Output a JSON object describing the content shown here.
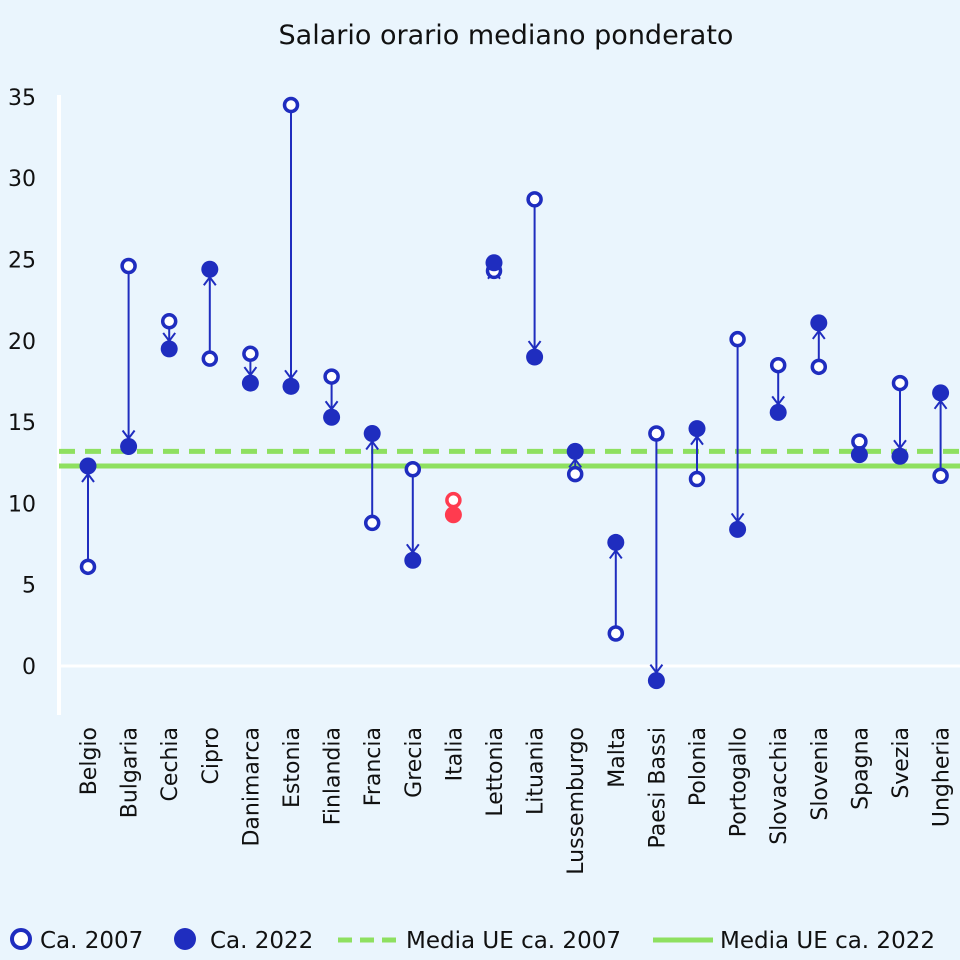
{
  "chart_data": {
    "type": "dumbbell-arrow",
    "title": "Salario orario mediano ponderato",
    "xlabel": "",
    "ylabel": "",
    "ylim": [
      -3,
      35
    ],
    "yticks": [
      0,
      5,
      10,
      15,
      20,
      25,
      30,
      35
    ],
    "grid": false,
    "legend_placement": "bottom",
    "categories": [
      "Belgio",
      "Bulgaria",
      "Cechia",
      "Cipro",
      "Danimarca",
      "Estonia",
      "Finlandia",
      "Francia",
      "Grecia",
      "Italia",
      "Lettonia",
      "Lituania",
      "Lussemburgo",
      "Malta",
      "Paesi Bassi",
      "Polonia",
      "Portogallo",
      "Slovacchia",
      "Slovenia",
      "Spagna",
      "Svezia",
      "Ungheria"
    ],
    "series": [
      {
        "name": "Ca. 2007",
        "marker": "open-circle",
        "values": [
          6.1,
          24.6,
          21.2,
          18.9,
          19.2,
          34.5,
          17.8,
          8.8,
          12.1,
          10.2,
          24.3,
          28.7,
          11.8,
          2.0,
          14.3,
          11.5,
          20.1,
          18.5,
          18.4,
          13.8,
          17.4,
          11.7
        ]
      },
      {
        "name": "Ca. 2022",
        "marker": "filled-circle",
        "values": [
          12.3,
          13.5,
          19.5,
          24.4,
          17.4,
          17.2,
          15.3,
          14.3,
          6.5,
          9.3,
          24.8,
          19.0,
          13.2,
          7.6,
          -0.9,
          14.6,
          8.4,
          15.6,
          21.1,
          13.0,
          12.9,
          16.8
        ]
      }
    ],
    "reference_lines": [
      {
        "name": "Media UE ca. 2007",
        "style": "dashed",
        "value": 13.2
      },
      {
        "name": "Media UE ca. 2022",
        "style": "solid",
        "value": 12.3
      }
    ],
    "highlight_category": "Italia",
    "colors": {
      "main": "#1f2dbf",
      "highlight": "#ff3b4f",
      "mean": "#8ee060",
      "background": "#eaf5fd"
    }
  }
}
